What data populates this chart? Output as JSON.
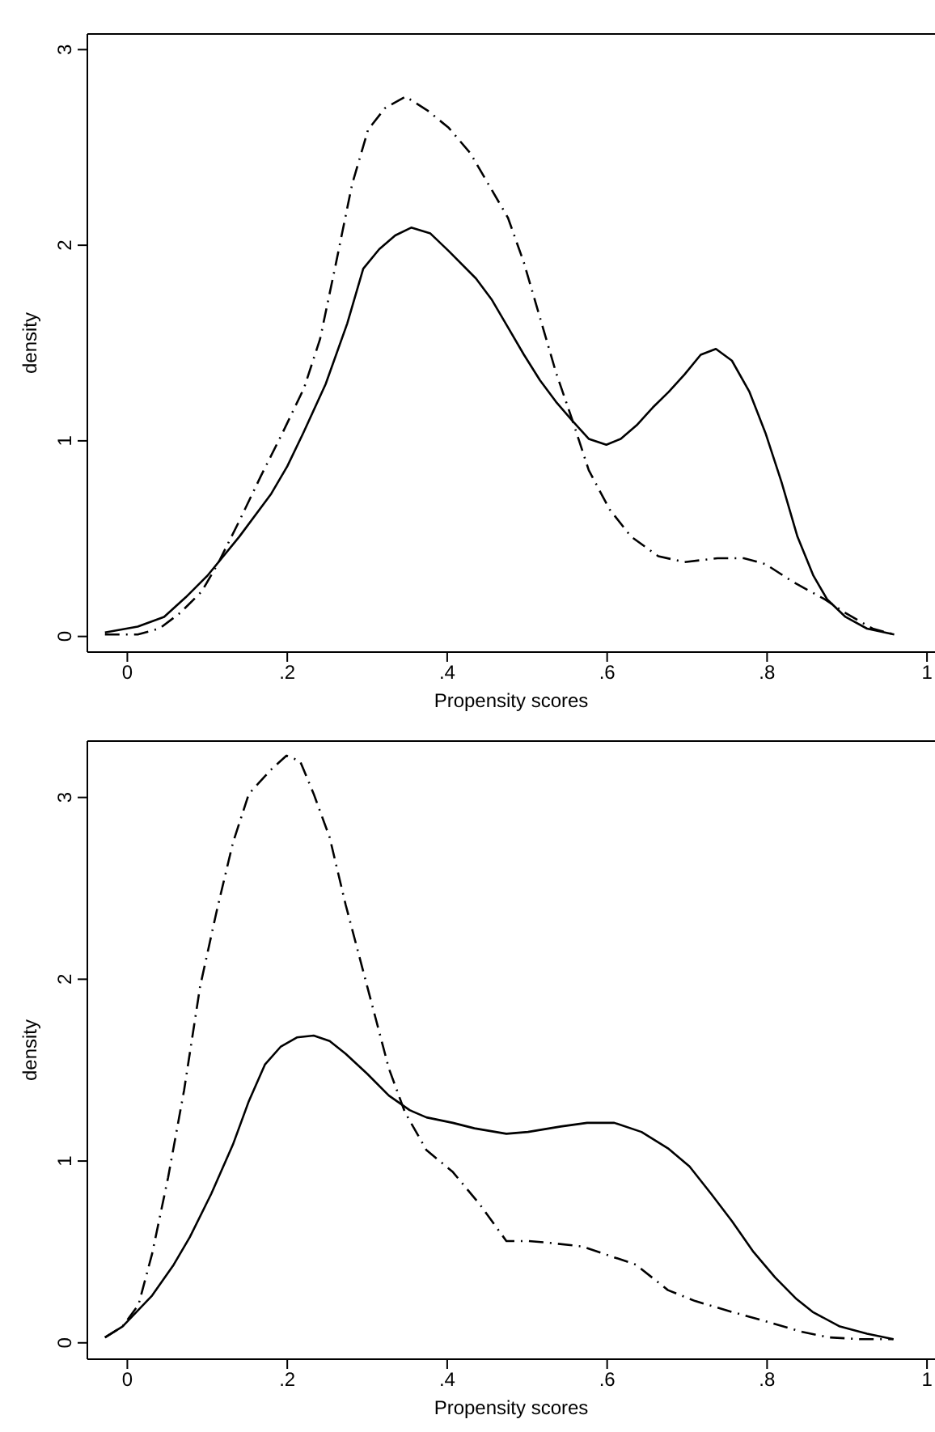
{
  "chart_data": [
    {
      "type": "line",
      "xlabel": "Propensity scores",
      "ylabel": "density",
      "xlim": [
        -0.05,
        1.01
      ],
      "ylim": [
        -0.08,
        3.08
      ],
      "xticks": [
        {
          "value": 0,
          "label": "0"
        },
        {
          "value": 0.2,
          "label": ".2"
        },
        {
          "value": 0.4,
          "label": ".4"
        },
        {
          "value": 0.6,
          "label": ".6"
        },
        {
          "value": 0.8,
          "label": ".8"
        },
        {
          "value": 1,
          "label": "1"
        }
      ],
      "yticks": [
        0,
        1,
        2,
        3
      ],
      "grid": false,
      "legend": false,
      "marker": "none",
      "series": [
        {
          "color": "#000000",
          "line_style": "solid",
          "x": [
            -0.028,
            0.013,
            0.046,
            0.073,
            0.1,
            0.14,
            0.18,
            0.2,
            0.22,
            0.248,
            0.275,
            0.295,
            0.315,
            0.335,
            0.355,
            0.379,
            0.402,
            0.436,
            0.456,
            0.476,
            0.496,
            0.516,
            0.536,
            0.557,
            0.577,
            0.599,
            0.617,
            0.637,
            0.657,
            0.677,
            0.697,
            0.717,
            0.736,
            0.756,
            0.778,
            0.798,
            0.818,
            0.838,
            0.858,
            0.875,
            0.898,
            0.925,
            0.959
          ],
          "values": [
            0.02,
            0.05,
            0.1,
            0.2,
            0.31,
            0.51,
            0.73,
            0.87,
            1.04,
            1.29,
            1.6,
            1.88,
            1.98,
            2.05,
            2.09,
            2.06,
            1.97,
            1.83,
            1.72,
            1.58,
            1.44,
            1.31,
            1.2,
            1.1,
            1.01,
            0.98,
            1.01,
            1.08,
            1.17,
            1.25,
            1.34,
            1.44,
            1.47,
            1.41,
            1.25,
            1.04,
            0.79,
            0.51,
            0.31,
            0.19,
            0.1,
            0.04,
            0.01
          ]
        },
        {
          "color": "#000000",
          "line_style": "dashed",
          "x": [
            -0.028,
            0.013,
            0.04,
            0.066,
            0.093,
            0.113,
            0.14,
            0.167,
            0.194,
            0.221,
            0.241,
            0.261,
            0.281,
            0.301,
            0.322,
            0.348,
            0.375,
            0.402,
            0.429,
            0.449,
            0.476,
            0.496,
            0.516,
            0.536,
            0.557,
            0.577,
            0.603,
            0.63,
            0.664,
            0.697,
            0.738,
            0.771,
            0.798,
            0.832,
            0.872,
            0.898,
            0.932,
            0.959
          ],
          "values": [
            0.01,
            0.01,
            0.04,
            0.12,
            0.23,
            0.37,
            0.59,
            0.82,
            1.04,
            1.27,
            1.52,
            1.91,
            2.31,
            2.59,
            2.7,
            2.76,
            2.69,
            2.6,
            2.47,
            2.33,
            2.14,
            1.91,
            1.63,
            1.35,
            1.1,
            0.85,
            0.65,
            0.51,
            0.41,
            0.38,
            0.4,
            0.4,
            0.37,
            0.28,
            0.19,
            0.12,
            0.04,
            0.01
          ]
        }
      ]
    },
    {
      "type": "line",
      "xlabel": "Propensity scores",
      "ylabel": "density",
      "xlim": [
        -0.05,
        1.01
      ],
      "ylim": [
        -0.09,
        3.31
      ],
      "xticks": [
        {
          "value": 0,
          "label": "0"
        },
        {
          "value": 0.2,
          "label": ".2"
        },
        {
          "value": 0.4,
          "label": ".4"
        },
        {
          "value": 0.6,
          "label": ".6"
        },
        {
          "value": 0.8,
          "label": ".8"
        },
        {
          "value": 1,
          "label": "1"
        }
      ],
      "yticks": [
        0,
        1,
        2,
        3
      ],
      "grid": false,
      "legend": false,
      "marker": "none",
      "series": [
        {
          "color": "#000000",
          "line_style": "solid",
          "x": [
            -0.028,
            -0.006,
            0.031,
            0.058,
            0.078,
            0.105,
            0.132,
            0.152,
            0.172,
            0.192,
            0.212,
            0.233,
            0.253,
            0.273,
            0.3,
            0.327,
            0.353,
            0.374,
            0.407,
            0.434,
            0.474,
            0.501,
            0.542,
            0.575,
            0.609,
            0.643,
            0.676,
            0.703,
            0.73,
            0.756,
            0.783,
            0.81,
            0.837,
            0.857,
            0.891,
            0.925,
            0.958
          ],
          "values": [
            0.03,
            0.09,
            0.26,
            0.43,
            0.58,
            0.82,
            1.09,
            1.33,
            1.53,
            1.63,
            1.68,
            1.69,
            1.66,
            1.59,
            1.48,
            1.36,
            1.28,
            1.24,
            1.21,
            1.18,
            1.15,
            1.16,
            1.19,
            1.21,
            1.21,
            1.16,
            1.07,
            0.97,
            0.82,
            0.67,
            0.5,
            0.36,
            0.24,
            0.17,
            0.09,
            0.05,
            0.02
          ]
        },
        {
          "color": "#000000",
          "line_style": "dashed",
          "x": [
            -0.028,
            -0.006,
            0.014,
            0.031,
            0.051,
            0.071,
            0.091,
            0.112,
            0.132,
            0.152,
            0.179,
            0.199,
            0.216,
            0.233,
            0.253,
            0.273,
            0.3,
            0.327,
            0.347,
            0.374,
            0.407,
            0.441,
            0.474,
            0.501,
            0.528,
            0.569,
            0.609,
            0.636,
            0.676,
            0.71,
            0.756,
            0.797,
            0.844,
            0.877,
            0.917,
            0.958
          ],
          "values": [
            0.03,
            0.09,
            0.21,
            0.49,
            0.91,
            1.39,
            1.96,
            2.38,
            2.75,
            3.02,
            3.15,
            3.23,
            3.2,
            3.02,
            2.78,
            2.41,
            1.96,
            1.51,
            1.27,
            1.06,
            0.94,
            0.76,
            0.56,
            0.56,
            0.55,
            0.53,
            0.47,
            0.43,
            0.29,
            0.23,
            0.17,
            0.12,
            0.06,
            0.03,
            0.02,
            0.02
          ]
        }
      ]
    }
  ]
}
